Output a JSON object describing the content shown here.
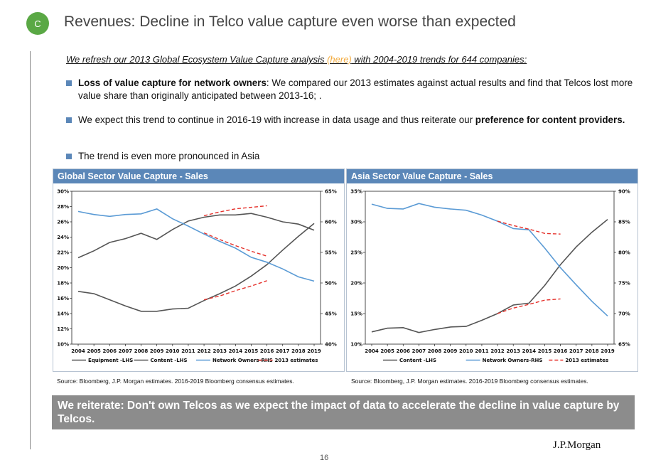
{
  "header": {
    "badge": "C",
    "title": "Revenues: Decline in Telco value capture even worse than expected"
  },
  "intro": {
    "before": "We refresh our 2013 Global Ecosystem Value Capture analysis ",
    "link": "(here)",
    "after": " with 2004-2019 trends for 644 companies:"
  },
  "bullets": {
    "b1_bold": "Loss of value capture for network owners",
    "b1_rest": ": We compared our 2013 estimates against actual results and find that Telcos lost more value share than originally anticipated between 2013-16; .",
    "b2_rest": "We expect this trend to continue  in 2016-19 with increase in data usage and thus reiterate our ",
    "b2_bold": "preference for content providers.",
    "b3": "The trend is even more pronounced in Asia"
  },
  "colors": {
    "gray_line": "#555555",
    "blue_line": "#5b9bd5",
    "red_dash": "#e5302a",
    "panel_header": "#5b87b8"
  },
  "chart_data": [
    {
      "type": "line",
      "title": "Global Sector Value Capture - Sales",
      "x": [
        2004,
        2005,
        2006,
        2007,
        2008,
        2009,
        2010,
        2011,
        2012,
        2013,
        2014,
        2015,
        2016,
        2017,
        2018,
        2019
      ],
      "ylim_left": [
        10,
        30
      ],
      "ylim_right": [
        40,
        65
      ],
      "yticks_left": [
        "30%",
        "28%",
        "26%",
        "24%",
        "22%",
        "20%",
        "18%",
        "16%",
        "14%",
        "12%",
        "10%"
      ],
      "yticks_right": [
        "65%",
        "60%",
        "55%",
        "50%",
        "45%",
        "40%"
      ],
      "legend": [
        "Equipment -LHS",
        "Content -LHS",
        "Network Owners-RHS",
        "2013 estimates"
      ],
      "series": [
        {
          "name": "Equipment -LHS",
          "axis": "left",
          "color": "#555555",
          "dash": false,
          "values": [
            21.3,
            22.2,
            23.3,
            23.8,
            24.5,
            23.7,
            25.0,
            26.1,
            26.6,
            26.9,
            26.9,
            27.1,
            26.6,
            26.0,
            25.7,
            24.9
          ]
        },
        {
          "name": "Content -LHS",
          "axis": "left",
          "color": "#555555",
          "dash": false,
          "values": [
            16.9,
            16.6,
            15.8,
            15.0,
            14.3,
            14.3,
            14.6,
            14.7,
            15.7,
            16.6,
            17.6,
            18.9,
            20.4,
            22.3,
            24.1,
            25.8
          ]
        },
        {
          "name": "Network Owners-RHS",
          "axis": "right",
          "color": "#5b9bd5",
          "dash": false,
          "values": [
            61.7,
            61.2,
            60.9,
            61.2,
            61.3,
            62.1,
            60.5,
            59.3,
            58.0,
            56.8,
            55.7,
            54.2,
            53.4,
            52.3,
            51.0,
            50.3
          ]
        },
        {
          "name": "2013 estimates",
          "axis": "left",
          "color": "#e5302a",
          "dash": true,
          "x": [
            2012,
            2013,
            2014,
            2015,
            2016
          ],
          "values": [
            26.8,
            27.3,
            27.7,
            27.9,
            28.1
          ]
        },
        {
          "name": "2013 estimates",
          "axis": "right",
          "color": "#e5302a",
          "dash": true,
          "x": [
            2012,
            2013,
            2014,
            2015,
            2016
          ],
          "values": [
            58.2,
            57.1,
            56.1,
            55.2,
            54.4
          ]
        },
        {
          "name": "2013 estimates",
          "axis": "left",
          "color": "#e5302a",
          "dash": true,
          "x": [
            2012,
            2013,
            2014,
            2015,
            2016
          ],
          "values": [
            15.8,
            16.3,
            17.0,
            17.6,
            18.3
          ]
        }
      ],
      "source": "Source:  Bloomberg, J.P. Morgan estimates. 2016-2019 Bloomberg consensus estimates."
    },
    {
      "type": "line",
      "title": "Asia Sector Value Capture - Sales",
      "x": [
        2004,
        2005,
        2006,
        2007,
        2008,
        2009,
        2010,
        2011,
        2012,
        2013,
        2014,
        2015,
        2016,
        2017,
        2018,
        2019
      ],
      "ylim_left": [
        10,
        35
      ],
      "ylim_right": [
        65,
        90
      ],
      "yticks_left": [
        "35%",
        "30%",
        "25%",
        "20%",
        "15%",
        "10%"
      ],
      "yticks_right": [
        "90%",
        "85%",
        "80%",
        "75%",
        "70%",
        "65%"
      ],
      "legend": [
        "Content -LHS",
        "Network Owners-RHS",
        "2013 estimates"
      ],
      "series": [
        {
          "name": "Content -LHS",
          "axis": "left",
          "color": "#555555",
          "dash": false,
          "values": [
            12.0,
            12.6,
            12.7,
            11.9,
            12.4,
            12.8,
            12.9,
            13.9,
            15.0,
            16.4,
            16.7,
            19.6,
            23.0,
            25.9,
            28.3,
            30.4
          ]
        },
        {
          "name": "Network Owners-RHS",
          "axis": "right",
          "color": "#5b9bd5",
          "dash": false,
          "values": [
            87.9,
            87.2,
            87.1,
            88.0,
            87.4,
            87.1,
            86.9,
            86.1,
            85.1,
            83.9,
            83.7,
            80.7,
            77.5,
            74.7,
            72.0,
            69.6
          ]
        },
        {
          "name": "2013 estimates",
          "axis": "right",
          "color": "#e5302a",
          "dash": true,
          "x": [
            2012,
            2013,
            2014,
            2015,
            2016
          ],
          "values": [
            85.1,
            84.4,
            83.8,
            83.1,
            83.0
          ]
        },
        {
          "name": "2013 estimates",
          "axis": "left",
          "color": "#e5302a",
          "dash": true,
          "x": [
            2012,
            2013,
            2014,
            2015,
            2016
          ],
          "values": [
            15.0,
            15.9,
            16.5,
            17.2,
            17.4
          ]
        }
      ],
      "source": "Source:  Bloomberg, J.P. Morgan estimates. 2016-2019 Bloomberg consensus estimates."
    }
  ],
  "banner": "We reiterate: Don't own Telcos as we expect the impact of data to accelerate the decline in value capture by Telcos.",
  "logo": "J.P.Morgan",
  "page_number": "16"
}
